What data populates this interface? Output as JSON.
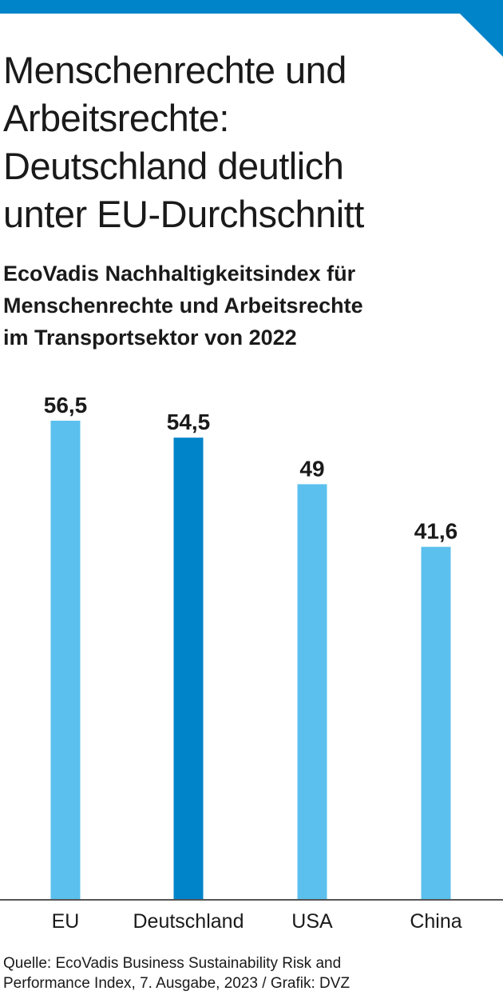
{
  "header": {
    "accent_color": "#0084c9"
  },
  "chart_data": {
    "type": "bar",
    "title_lines": [
      "Menschenrechte und",
      "Arbeitsrechte:",
      "Deutschland deutlich",
      "unter EU-Durchschnitt"
    ],
    "subtitle_lines": [
      "EcoVadis Nachhaltigkeitsindex für",
      "Menschenrechte und Arbeitsrechte",
      "im Transportsektor von 2022"
    ],
    "categories": [
      "EU",
      "Deutschland",
      "USA",
      "China"
    ],
    "values": [
      56.5,
      54.5,
      49,
      41.6
    ],
    "value_labels": [
      "56,5",
      "54,5",
      "49",
      "41,6"
    ],
    "highlight_category": "Deutschland",
    "colors": {
      "default": "#5bc0ee",
      "highlight": "#0084c9",
      "axis": "#555555"
    },
    "ylim": [
      0,
      56.5
    ],
    "grid": false,
    "source_lines": [
      "Quelle: EcoVadis Business Sustainability Risk and",
      "Performance Index, 7. Ausgabe, 2023 / Grafik: DVZ"
    ]
  }
}
